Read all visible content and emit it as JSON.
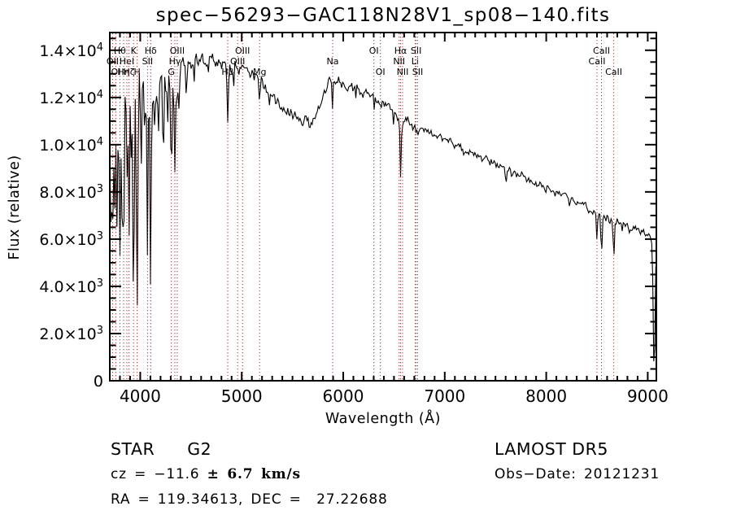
{
  "title": "spec−56293−GAC118N28V1_sp08−140.fits",
  "colors": {
    "background": "#FFFFFF",
    "spectrum": "#000000",
    "line_marker": "#A03838",
    "text": "#000000"
  },
  "axes": {
    "x": {
      "label": "Wavelength (Å)",
      "min": 3700,
      "max": 9085,
      "minor_step": 100,
      "major_tick_labels": [
        {
          "v": 4000,
          "t": "4000"
        },
        {
          "v": 5000,
          "t": "5000"
        },
        {
          "v": 6000,
          "t": "6000"
        },
        {
          "v": 7000,
          "t": "7000"
        },
        {
          "v": 8000,
          "t": "8000"
        },
        {
          "v": 9000,
          "t": "9000"
        }
      ]
    },
    "y": {
      "label": "Flux (relative)",
      "min": 0,
      "max": 14750,
      "minor_step": 500,
      "major_tick_labels": [
        {
          "v": 0,
          "m": "0",
          "s": ""
        },
        {
          "v": 2000,
          "m": "2.0×10",
          "s": "3"
        },
        {
          "v": 4000,
          "m": "4.0×10",
          "s": "3"
        },
        {
          "v": 6000,
          "m": "6.0×10",
          "s": "3"
        },
        {
          "v": 8000,
          "m": "8.0×10",
          "s": "3"
        },
        {
          "v": 10000,
          "m": "1.0×10",
          "s": "4"
        },
        {
          "v": 12000,
          "m": "1.2×10",
          "s": "4"
        },
        {
          "v": 14000,
          "m": "1.4×10",
          "s": "4"
        }
      ]
    }
  },
  "footer": {
    "object_type": "STAR",
    "subclass": "G2",
    "cz_prefix": "cz = −11.6 ",
    "cz_math": "± 6.7 km/s",
    "ra_dec": "RA = 119.34613, DEC =  27.22688",
    "survey": "LAMOST DR5",
    "obs_date": "Obs−Date: 20121231"
  },
  "chart_data": {
    "type": "line",
    "title": "spec−56293−GAC118N28V1_sp08−140.fits",
    "xlabel": "Wavelength (Å)",
    "ylabel": "Flux (relative)",
    "xlim": [
      3700,
      9085
    ],
    "ylim": [
      0,
      14750
    ],
    "grid": false,
    "x_major_ticks": [
      4000,
      5000,
      6000,
      7000,
      8000,
      9000
    ],
    "y_major_ticks": [
      0,
      2000,
      4000,
      6000,
      8000,
      10000,
      12000,
      14000
    ],
    "series": [
      {
        "name": "observed spectrum",
        "color": "#000000",
        "continuum_points": [
          [
            3700,
            10500
          ],
          [
            3760,
            11300
          ],
          [
            3850,
            11800
          ],
          [
            3950,
            12200
          ],
          [
            4050,
            12500
          ],
          [
            4150,
            12700
          ],
          [
            4250,
            12900
          ],
          [
            4350,
            13100
          ],
          [
            4450,
            13400
          ],
          [
            4550,
            13550
          ],
          [
            4650,
            13650
          ],
          [
            4750,
            13550
          ],
          [
            4850,
            13450
          ],
          [
            4950,
            13350
          ],
          [
            5050,
            13200
          ],
          [
            5150,
            12900
          ],
          [
            5250,
            12300
          ],
          [
            5350,
            11800
          ],
          [
            5450,
            11400
          ],
          [
            5550,
            11000
          ],
          [
            5650,
            10800
          ],
          [
            5750,
            11300
          ],
          [
            5850,
            12700
          ],
          [
            5900,
            12900
          ],
          [
            5950,
            12700
          ],
          [
            6050,
            12500
          ],
          [
            6150,
            12350
          ],
          [
            6250,
            12100
          ],
          [
            6400,
            11700
          ],
          [
            6565,
            11100
          ],
          [
            6700,
            10800
          ],
          [
            6900,
            10400
          ],
          [
            7100,
            10000
          ],
          [
            7300,
            9600
          ],
          [
            7500,
            9200
          ],
          [
            7700,
            8800
          ],
          [
            7900,
            8400
          ],
          [
            8100,
            8000
          ],
          [
            8300,
            7600
          ],
          [
            8500,
            7100
          ],
          [
            8650,
            6800
          ],
          [
            8800,
            6500
          ],
          [
            8950,
            6250
          ],
          [
            9085,
            6050
          ]
        ],
        "absorption_feature_format": [
          "wavelength",
          "depth_fraction",
          "sigma_angstrom"
        ],
        "absorption_features": [
          [
            3712,
            0.35,
            8
          ],
          [
            3727,
            0.45,
            6
          ],
          [
            3750,
            0.38,
            6
          ],
          [
            3771,
            0.42,
            6
          ],
          [
            3799,
            0.52,
            7
          ],
          [
            3820,
            0.3,
            5
          ],
          [
            3836,
            0.55,
            7
          ],
          [
            3868,
            0.4,
            5
          ],
          [
            3889,
            0.52,
            7
          ],
          [
            3912,
            0.28,
            5
          ],
          [
            3934,
            0.72,
            7
          ],
          [
            3969,
            0.76,
            7
          ],
          [
            4010,
            0.22,
            5
          ],
          [
            4045,
            0.25,
            5
          ],
          [
            4072,
            0.6,
            6
          ],
          [
            4102,
            0.68,
            6
          ],
          [
            4145,
            0.2,
            5
          ],
          [
            4180,
            0.15,
            5
          ],
          [
            4226,
            0.28,
            5
          ],
          [
            4270,
            0.15,
            5
          ],
          [
            4306,
            0.32,
            8
          ],
          [
            4341,
            0.35,
            7
          ],
          [
            4364,
            0.14,
            5
          ],
          [
            4384,
            0.16,
            4
          ],
          [
            4455,
            0.1,
            4
          ],
          [
            4531,
            0.08,
            4
          ],
          [
            4668,
            0.08,
            4
          ],
          [
            4862,
            0.18,
            7
          ],
          [
            4920,
            0.06,
            4
          ],
          [
            5176,
            0.09,
            6
          ],
          [
            5270,
            0.07,
            5
          ],
          [
            5894,
            0.11,
            5
          ],
          [
            6122,
            0.03,
            4
          ],
          [
            6302,
            0.04,
            4
          ],
          [
            6495,
            0.04,
            4
          ],
          [
            6565,
            0.21,
            6
          ],
          [
            6718,
            0.03,
            4
          ],
          [
            6733,
            0.03,
            4
          ],
          [
            7190,
            0.03,
            6
          ],
          [
            7605,
            0.06,
            8
          ],
          [
            8228,
            0.04,
            5
          ],
          [
            8500,
            0.18,
            5
          ],
          [
            8544,
            0.27,
            5
          ],
          [
            8665,
            0.26,
            5
          ],
          [
            8750,
            0.06,
            4
          ],
          [
            9063,
            0.96,
            9
          ]
        ],
        "noise_profile": [
          [
            3700,
            0.12
          ],
          [
            4000,
            0.08
          ],
          [
            4300,
            0.04
          ],
          [
            4500,
            0.02
          ],
          [
            5300,
            0.018
          ],
          [
            5650,
            0.022
          ],
          [
            5950,
            0.014
          ],
          [
            7000,
            0.016
          ],
          [
            8000,
            0.02
          ],
          [
            8800,
            0.024
          ],
          [
            9085,
            0.028
          ]
        ]
      }
    ],
    "marked_lines": [
      {
        "label": "OII",
        "wavelength": 3727,
        "row": 2
      },
      {
        "label": "OI",
        "wavelength": 3760,
        "row": 3
      },
      {
        "label": "Hθ",
        "wavelength": 3799,
        "row": 1
      },
      {
        "label": "Hη",
        "wavelength": 3836,
        "row": 3
      },
      {
        "label": "HeI",
        "wavelength": 3868,
        "row": 2
      },
      {
        "label": "Hζ",
        "wavelength": 3889,
        "row": 3
      },
      {
        "label": "K",
        "wavelength": 3934,
        "row": 1
      },
      {
        "label": "H",
        "wavelength": 3969,
        "row": 3
      },
      {
        "label": "SII",
        "wavelength": 4072,
        "row": 2
      },
      {
        "label": "Hδ",
        "wavelength": 4102,
        "row": 1
      },
      {
        "label": "G",
        "wavelength": 4306,
        "row": 3
      },
      {
        "label": "Hγ",
        "wavelength": 4341,
        "row": 2
      },
      {
        "label": "OIII",
        "wavelength": 4364,
        "row": 1
      },
      {
        "label": "Hβ",
        "wavelength": 4862,
        "row": 3
      },
      {
        "label": "OIII",
        "wavelength": 4960,
        "row": 2
      },
      {
        "label": "OIII",
        "wavelength": 5008,
        "row": 1
      },
      {
        "label": "Mg",
        "wavelength": 5176,
        "row": 3
      },
      {
        "label": "Na",
        "wavelength": 5896,
        "row": 2
      },
      {
        "label": "OI",
        "wavelength": 6302,
        "row": 1
      },
      {
        "label": "OI",
        "wavelength": 6366,
        "row": 3
      },
      {
        "label": "NII",
        "wavelength": 6550,
        "row": 2
      },
      {
        "label": "Hα",
        "wavelength": 6565,
        "row": 1
      },
      {
        "label": "NII",
        "wavelength": 6585,
        "row": 3
      },
      {
        "label": "Li",
        "wavelength": 6708,
        "row": 2
      },
      {
        "label": "SII",
        "wavelength": 6718,
        "row": 1
      },
      {
        "label": "SII",
        "wavelength": 6733,
        "row": 3
      },
      {
        "label": "CaII",
        "wavelength": 8500,
        "row": 2
      },
      {
        "label": "CaII",
        "wavelength": 8544,
        "row": 1
      },
      {
        "label": "CaII",
        "wavelength": 8665,
        "row": 3
      }
    ]
  }
}
